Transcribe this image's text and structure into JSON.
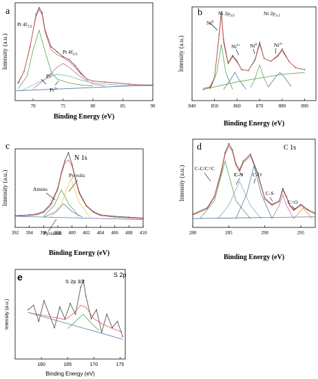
{
  "chart_data": [
    {
      "panel_letter": "a",
      "type": "line",
      "xlabel": "Binding Energy (eV)",
      "ylabel": "Intensity (a.u.)",
      "xlim": [
        67,
        90
      ],
      "xticks": [
        70,
        75,
        80,
        85,
        90
      ],
      "annotations": [
        "Pt 4f7/2",
        "Pt 4f5/2",
        "Pt0",
        "Pt2+"
      ],
      "series": [
        {
          "role": "raw",
          "color": "#555555",
          "x": [
            67.5,
            68.5,
            69.5,
            70.5,
            71.0,
            71.5,
            72.0,
            73.0,
            74.0,
            75.0,
            76.0,
            77.0,
            78.0,
            79.0,
            80.0,
            82.0,
            84.0,
            86.0,
            88.0,
            90.0
          ],
          "y": [
            0.18,
            0.3,
            0.55,
            0.88,
            0.95,
            0.9,
            0.72,
            0.55,
            0.5,
            0.45,
            0.42,
            0.36,
            0.28,
            0.22,
            0.2,
            0.19,
            0.18,
            0.17,
            0.16,
            0.16
          ]
        },
        {
          "role": "fit",
          "color": "#e15759",
          "x": [
            67.5,
            68.5,
            69.5,
            70.5,
            71.0,
            71.5,
            72.0,
            73.0,
            74.0,
            75.0,
            76.0,
            77.0,
            78.0,
            79.0,
            80.0,
            82.0,
            84.0,
            86.0,
            88.0,
            90.0
          ],
          "y": [
            0.17,
            0.3,
            0.56,
            0.86,
            0.93,
            0.88,
            0.7,
            0.52,
            0.47,
            0.44,
            0.4,
            0.34,
            0.27,
            0.22,
            0.2,
            0.19,
            0.18,
            0.17,
            0.16,
            0.16
          ]
        },
        {
          "role": "component",
          "color": "#59a14f",
          "x": [
            67.5,
            69,
            70,
            71,
            72,
            73,
            74,
            76,
            78,
            80
          ],
          "y": [
            0.12,
            0.25,
            0.52,
            0.72,
            0.5,
            0.3,
            0.22,
            0.18,
            0.16,
            0.15
          ]
        },
        {
          "role": "component",
          "color": "#b07aa1",
          "x": [
            70,
            72,
            74,
            75,
            76,
            78,
            80,
            82
          ],
          "y": [
            0.12,
            0.22,
            0.34,
            0.38,
            0.34,
            0.24,
            0.17,
            0.15
          ]
        },
        {
          "role": "component",
          "color": "#76b7b2",
          "x": [
            68,
            70,
            72,
            74,
            76,
            78,
            80,
            84,
            90
          ],
          "y": [
            0.1,
            0.16,
            0.22,
            0.27,
            0.25,
            0.21,
            0.18,
            0.16,
            0.15
          ]
        },
        {
          "role": "baseline",
          "color": "#4e79a7",
          "x": [
            67,
            90
          ],
          "y": [
            0.1,
            0.16
          ]
        }
      ]
    },
    {
      "panel_letter": "b",
      "type": "line",
      "xlabel": "Binding Energy (eV)",
      "ylabel": "Intensity (a.u.)",
      "xlim": [
        840,
        895
      ],
      "xticks": [
        840,
        850,
        860,
        870,
        880,
        890
      ],
      "annotations": [
        "Ni 2p3/2",
        "Ni 2p1/2",
        "Ni0",
        "Ni2+",
        "Ni0",
        "Ni2+"
      ],
      "series": [
        {
          "role": "raw",
          "color": "#555555",
          "x": [
            845,
            848,
            850,
            852,
            853,
            854,
            856,
            858,
            860,
            862,
            865,
            868,
            870,
            872,
            875,
            878,
            880,
            883,
            886,
            890
          ],
          "y": [
            0.12,
            0.14,
            0.25,
            0.7,
            0.95,
            0.65,
            0.4,
            0.48,
            0.42,
            0.33,
            0.32,
            0.44,
            0.62,
            0.45,
            0.42,
            0.48,
            0.55,
            0.42,
            0.35,
            0.33
          ]
        },
        {
          "role": "fit",
          "color": "#e15759",
          "x": [
            845,
            848,
            850,
            852,
            853,
            854,
            856,
            858,
            860,
            862,
            865,
            868,
            870,
            872,
            875,
            878,
            880,
            883,
            886,
            890
          ],
          "y": [
            0.13,
            0.15,
            0.25,
            0.68,
            0.92,
            0.62,
            0.39,
            0.47,
            0.41,
            0.33,
            0.32,
            0.43,
            0.6,
            0.45,
            0.42,
            0.47,
            0.53,
            0.42,
            0.35,
            0.33
          ]
        },
        {
          "role": "component",
          "color": "#59a14f",
          "x": [
            848,
            851,
            853,
            855,
            858
          ],
          "y": [
            0.12,
            0.3,
            0.6,
            0.3,
            0.12
          ]
        },
        {
          "role": "component",
          "color": "#4e79a7",
          "x": [
            854,
            857,
            859,
            861,
            864
          ],
          "y": [
            0.12,
            0.22,
            0.3,
            0.22,
            0.12
          ]
        },
        {
          "role": "component",
          "color": "#59a14f",
          "x": [
            866,
            868,
            870,
            872,
            874
          ],
          "y": [
            0.14,
            0.24,
            0.38,
            0.24,
            0.14
          ]
        },
        {
          "role": "component",
          "color": "#4e79a7",
          "x": [
            874,
            877,
            879,
            881,
            884
          ],
          "y": [
            0.15,
            0.25,
            0.3,
            0.25,
            0.15
          ]
        },
        {
          "role": "baseline",
          "color": "#59a14f",
          "x": [
            845,
            860,
            870,
            880,
            890
          ],
          "y": [
            0.12,
            0.2,
            0.24,
            0.28,
            0.3
          ]
        }
      ]
    },
    {
      "panel_letter": "c",
      "type": "line",
      "title": "N 1s",
      "xlabel": "Binding Energy (eV)",
      "ylabel": "Intensity (a.u.)",
      "xlim": [
        392,
        410
      ],
      "xticks": [
        392,
        394,
        396,
        398,
        400,
        402,
        404,
        406,
        408,
        410
      ],
      "annotations": [
        "Amino",
        "Pyrrolic",
        "Pyridinic"
      ],
      "series": [
        {
          "role": "raw",
          "color": "#555555",
          "x": [
            392,
            394,
            395,
            396,
            397,
            398,
            398.5,
            399,
            399.5,
            400,
            400.5,
            401,
            402,
            403,
            404,
            406,
            408,
            410
          ],
          "y": [
            0.15,
            0.16,
            0.17,
            0.2,
            0.3,
            0.5,
            0.7,
            0.85,
            0.95,
            0.8,
            0.62,
            0.45,
            0.28,
            0.2,
            0.16,
            0.14,
            0.13,
            0.12
          ]
        },
        {
          "role": "fit",
          "color": "#e15759",
          "x": [
            392,
            394,
            395,
            396,
            397,
            398,
            398.5,
            399,
            399.5,
            400,
            400.5,
            401,
            402,
            403,
            404,
            406,
            408,
            410
          ],
          "y": [
            0.14,
            0.15,
            0.16,
            0.19,
            0.28,
            0.48,
            0.68,
            0.82,
            0.86,
            0.78,
            0.6,
            0.43,
            0.27,
            0.19,
            0.15,
            0.13,
            0.12,
            0.11
          ]
        },
        {
          "role": "component",
          "color": "#59a14f",
          "x": [
            396,
            397.5,
            398.5,
            399.5,
            401
          ],
          "y": [
            0.14,
            0.28,
            0.48,
            0.3,
            0.14
          ]
        },
        {
          "role": "component",
          "color": "#edc948",
          "x": [
            397,
            398.5,
            399.8,
            401,
            402.5
          ],
          "y": [
            0.13,
            0.3,
            0.62,
            0.32,
            0.13
          ]
        },
        {
          "role": "component",
          "color": "#4e79a7",
          "x": [
            396,
            397.8,
            398.8,
            400,
            401.5
          ],
          "y": [
            0.13,
            0.2,
            0.3,
            0.2,
            0.13
          ]
        },
        {
          "role": "baseline",
          "color": "#4e79a7",
          "x": [
            392,
            410
          ],
          "y": [
            0.14,
            0.1
          ]
        }
      ]
    },
    {
      "panel_letter": "d",
      "type": "line",
      "title": "C 1s",
      "xlabel": "Binding Energy (eV)",
      "ylabel": "Intensity (a.u.)",
      "xlim": [
        280,
        297
      ],
      "xticks": [
        280,
        285,
        290,
        295
      ],
      "annotations": [
        "C-C/C=C",
        "C-N",
        "C-O",
        "C-S",
        "C=O"
      ],
      "series": [
        {
          "role": "raw",
          "color": "#555555",
          "x": [
            280,
            282,
            283,
            284,
            284.5,
            285,
            285.5,
            286,
            286.5,
            287,
            288,
            289,
            290,
            291,
            292,
            292.5,
            293,
            293.5,
            294,
            295,
            296,
            297
          ],
          "y": [
            0.15,
            0.22,
            0.35,
            0.65,
            0.85,
            0.95,
            0.88,
            0.72,
            0.65,
            0.75,
            0.83,
            0.62,
            0.33,
            0.26,
            0.3,
            0.44,
            0.35,
            0.25,
            0.2,
            0.26,
            0.2,
            0.16
          ]
        },
        {
          "role": "fit",
          "color": "#e15759",
          "x": [
            280,
            282,
            283,
            284,
            284.5,
            285,
            285.5,
            286,
            286.5,
            287,
            288,
            289,
            290,
            291,
            292,
            292.5,
            293,
            293.5,
            294,
            295,
            296,
            297
          ],
          "y": [
            0.14,
            0.21,
            0.34,
            0.63,
            0.83,
            0.92,
            0.86,
            0.7,
            0.63,
            0.73,
            0.81,
            0.6,
            0.32,
            0.25,
            0.29,
            0.42,
            0.34,
            0.24,
            0.19,
            0.25,
            0.19,
            0.15
          ]
        },
        {
          "role": "component",
          "color": "#59a14f",
          "x": [
            281,
            283,
            284.5,
            286,
            288
          ],
          "y": [
            0.1,
            0.3,
            0.75,
            0.3,
            0.1
          ]
        },
        {
          "role": "component",
          "color": "#76b7b2",
          "x": [
            283.5,
            285,
            286.5,
            288,
            289.5
          ],
          "y": [
            0.1,
            0.25,
            0.52,
            0.25,
            0.1
          ]
        },
        {
          "role": "component",
          "color": "#4e79a7",
          "x": [
            286,
            287.5,
            288.5,
            289.5,
            291
          ],
          "y": [
            0.1,
            0.38,
            0.7,
            0.38,
            0.1
          ]
        },
        {
          "role": "component",
          "color": "#b07aa1",
          "x": [
            291,
            292,
            292.5,
            293,
            294
          ],
          "y": [
            0.1,
            0.25,
            0.37,
            0.25,
            0.1
          ]
        },
        {
          "role": "component",
          "color": "#f28e2b",
          "x": [
            294,
            294.8,
            295.3,
            295.8,
            296.6
          ],
          "y": [
            0.1,
            0.17,
            0.22,
            0.17,
            0.1
          ]
        },
        {
          "role": "baseline",
          "color": "#4e79a7",
          "x": [
            280,
            297
          ],
          "y": [
            0.1,
            0.12
          ]
        }
      ]
    },
    {
      "panel_letter": "e",
      "type": "line",
      "title": "S 2p",
      "xlabel": "Binding Energy (eV)",
      "ylabel": "Intensity (a.u.)",
      "xlim": [
        155,
        176
      ],
      "xticks": [
        160,
        165,
        170,
        175
      ],
      "annotations": [
        "S 2p 3/2"
      ],
      "series": [
        {
          "role": "raw",
          "color": "#555555",
          "x": [
            157.5,
            158.5,
            159.5,
            160.5,
            161.5,
            162.5,
            163.5,
            164.5,
            165.5,
            166.5,
            167.5,
            168.0,
            168.5,
            169.5,
            170.5,
            171.5,
            172.5,
            173.5,
            174.5,
            175.5
          ],
          "y": [
            0.55,
            0.6,
            0.42,
            0.65,
            0.5,
            0.35,
            0.58,
            0.45,
            0.62,
            0.5,
            0.8,
            0.88,
            0.7,
            0.45,
            0.55,
            0.3,
            0.5,
            0.35,
            0.42,
            0.25
          ]
        },
        {
          "role": "fit",
          "color": "#e15759",
          "x": [
            157.5,
            159,
            161,
            163,
            164.5,
            166,
            167.5,
            168.5,
            170,
            172,
            174,
            175.5
          ],
          "y": [
            0.52,
            0.5,
            0.48,
            0.46,
            0.44,
            0.5,
            0.6,
            0.58,
            0.45,
            0.38,
            0.33,
            0.3
          ]
        },
        {
          "role": "component",
          "color": "#59a14f",
          "x": [
            165,
            166.5,
            168,
            169.5,
            171
          ],
          "y": [
            0.34,
            0.42,
            0.5,
            0.4,
            0.32
          ]
        },
        {
          "role": "baseline",
          "color": "#4e79a7",
          "x": [
            157.5,
            175.5
          ],
          "y": [
            0.52,
            0.22
          ]
        }
      ]
    }
  ]
}
